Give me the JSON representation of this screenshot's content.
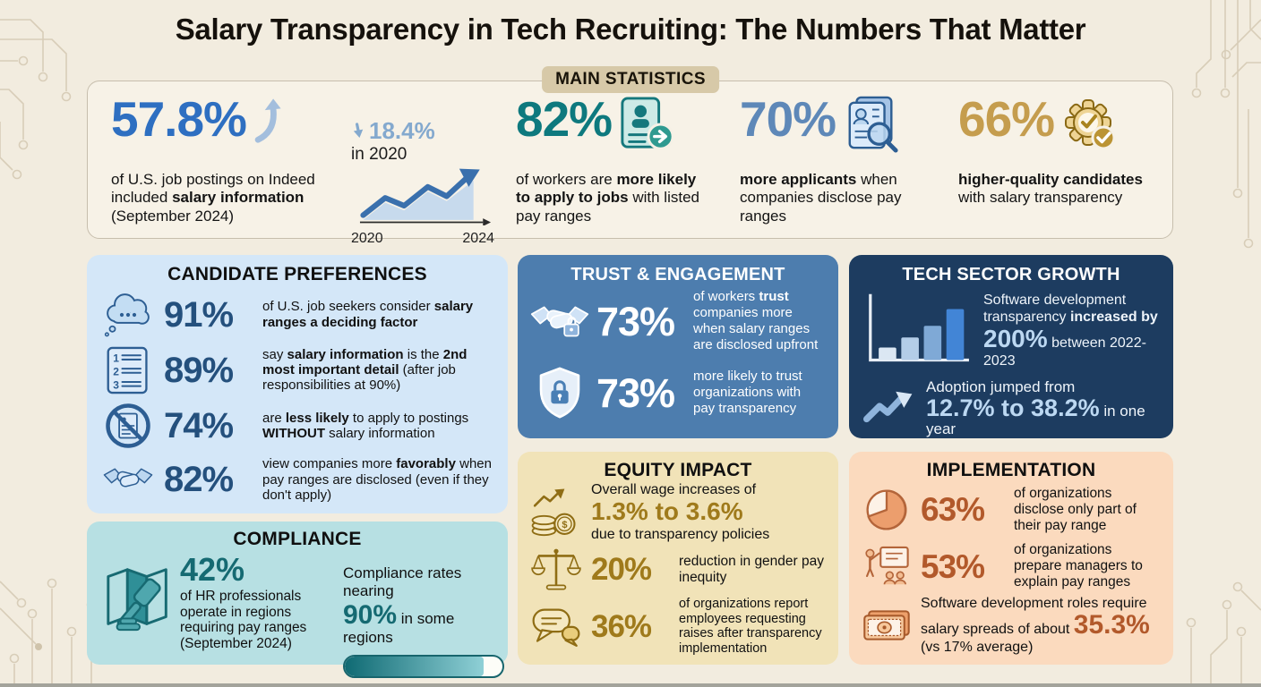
{
  "page": {
    "title": "Salary Transparency in Tech Recruiting: The Numbers That Matter",
    "badge": "MAIN STATISTICS"
  },
  "main_stats": {
    "stat1": {
      "value": "57.8%",
      "icon": "up-trend-arrow-icon",
      "desc": [
        {
          "t": "of U.S. job postings on Indeed included "
        },
        {
          "t": "salary information",
          "b": true
        },
        {
          "t": " (September 2024)"
        }
      ]
    },
    "trend": {
      "icon": "decline-arrow-icon",
      "value": "18.4%",
      "label": "in 2020",
      "x_start": "2020",
      "x_end": "2024"
    },
    "stat2": {
      "value": "82%",
      "icon": "resume-apply-icon",
      "desc": [
        {
          "t": "of workers are "
        },
        {
          "t": "more likely to apply to jobs",
          "b": true
        },
        {
          "t": " with listed pay ranges"
        }
      ]
    },
    "stat3": {
      "value": "70%",
      "icon": "resume-search-icon",
      "desc": [
        {
          "t": "more applicants",
          "b": true
        },
        {
          "t": " when companies disclose pay ranges"
        }
      ]
    },
    "stat4": {
      "value": "66%",
      "icon": "gear-check-icon",
      "desc": [
        {
          "t": "higher-quality candidates",
          "b": true
        },
        {
          "t": " with salary transparency"
        }
      ]
    }
  },
  "candidate_preferences": {
    "title": "CANDIDATE PREFERENCES",
    "items": [
      {
        "value": "91%",
        "icon": "thought-cloud-icon",
        "desc": [
          {
            "t": "of U.S. job seekers consider "
          },
          {
            "t": "salary ranges a deciding factor",
            "b": true
          }
        ]
      },
      {
        "value": "89%",
        "icon": "numbered-list-icon",
        "desc": [
          {
            "t": "say "
          },
          {
            "t": "salary information",
            "b": true
          },
          {
            "t": " is the "
          },
          {
            "t": "2nd most important detail",
            "b": true
          },
          {
            "t": " (after job responsibilities at 90%)"
          }
        ]
      },
      {
        "value": "74%",
        "icon": "no-salary-document-icon",
        "desc": [
          {
            "t": "are "
          },
          {
            "t": "less likely",
            "b": true
          },
          {
            "t": " to apply to postings "
          },
          {
            "t": "WITHOUT",
            "b": true
          },
          {
            "t": " salary information"
          }
        ]
      },
      {
        "value": "82%",
        "icon": "handshake-icon",
        "desc": [
          {
            "t": "view companies more "
          },
          {
            "t": "favorably",
            "b": true
          },
          {
            "t": " when pay ranges are disclosed (even if they don't apply)"
          }
        ]
      }
    ]
  },
  "trust_engagement": {
    "title": "TRUST & ENGAGEMENT",
    "items": [
      {
        "value": "73%",
        "icon": "handshake-lock-icon",
        "desc": [
          {
            "t": "of workers "
          },
          {
            "t": "trust",
            "b": true
          },
          {
            "t": " companies more when salary ranges are disclosed upfront"
          }
        ]
      },
      {
        "value": "73%",
        "icon": "shield-lock-icon",
        "desc": [
          {
            "t": "more likely to trust organizations with pay transparency"
          }
        ]
      }
    ]
  },
  "tech_sector_growth": {
    "title": "TECH SECTOR GROWTH",
    "stat1": {
      "icon": "bar-chart-icon",
      "lead": [
        {
          "t": "Software development transparency "
        },
        {
          "t": "increased by ",
          "b": true
        }
      ],
      "highlight": "200%",
      "tail": " between 2022-2023"
    },
    "stat2": {
      "icon": "growth-arrow-icon",
      "line1": "Adoption jumped from",
      "highlight": "12.7% to 38.2%",
      "suffix": " in one year"
    }
  },
  "compliance": {
    "title": "COMPLIANCE",
    "stat": {
      "value": "42%",
      "icon": "map-gavel-icon",
      "desc": "of HR professionals operate in regions requiring pay ranges (September 2024)"
    },
    "rate": {
      "prefix": "Compliance rates nearing",
      "value": "90%",
      "suffix": " in some regions",
      "progress_pct": 88
    }
  },
  "equity_impact": {
    "title": "EQUITY IMPACT",
    "wage": {
      "icon": "coins-trend-icon",
      "line1": "Overall wage increases of",
      "highlight": "1.3% to 3.6%",
      "line3": "due to transparency policies"
    },
    "items": [
      {
        "value": "20%",
        "icon": "balance-scale-icon",
        "desc": "reduction in gender pay inequity"
      },
      {
        "value": "36%",
        "icon": "speech-bubbles-icon",
        "desc": "of organizations report employees requesting raises after transparency implementation"
      }
    ]
  },
  "implementation": {
    "title": "IMPLEMENTATION",
    "items": [
      {
        "value": "63%",
        "icon": "pie-chart-icon",
        "desc": "of organizations disclose only part of their pay range"
      },
      {
        "value": "53%",
        "icon": "manager-training-icon",
        "desc": "of organizations prepare managers to explain pay ranges"
      }
    ],
    "spread": {
      "icon": "banknote-icon",
      "lead": "Software development roles require salary spreads of about ",
      "highlight": "35.3%",
      "tail": " (vs 17% average)"
    }
  },
  "colors": {
    "background": "#f2ecdf",
    "accent_blue": "#2e6fc1",
    "accent_teal": "#0e797e",
    "accent_steel": "#5e88b8",
    "accent_gold": "#c59d4e",
    "card_candidate": "#d4e7f8",
    "card_trust": "#4d7dae",
    "card_tech": "#1d3c60",
    "card_compliance": "#b7e0e3",
    "card_equity": "#f1e3b8",
    "card_implementation": "#fbdabe"
  }
}
